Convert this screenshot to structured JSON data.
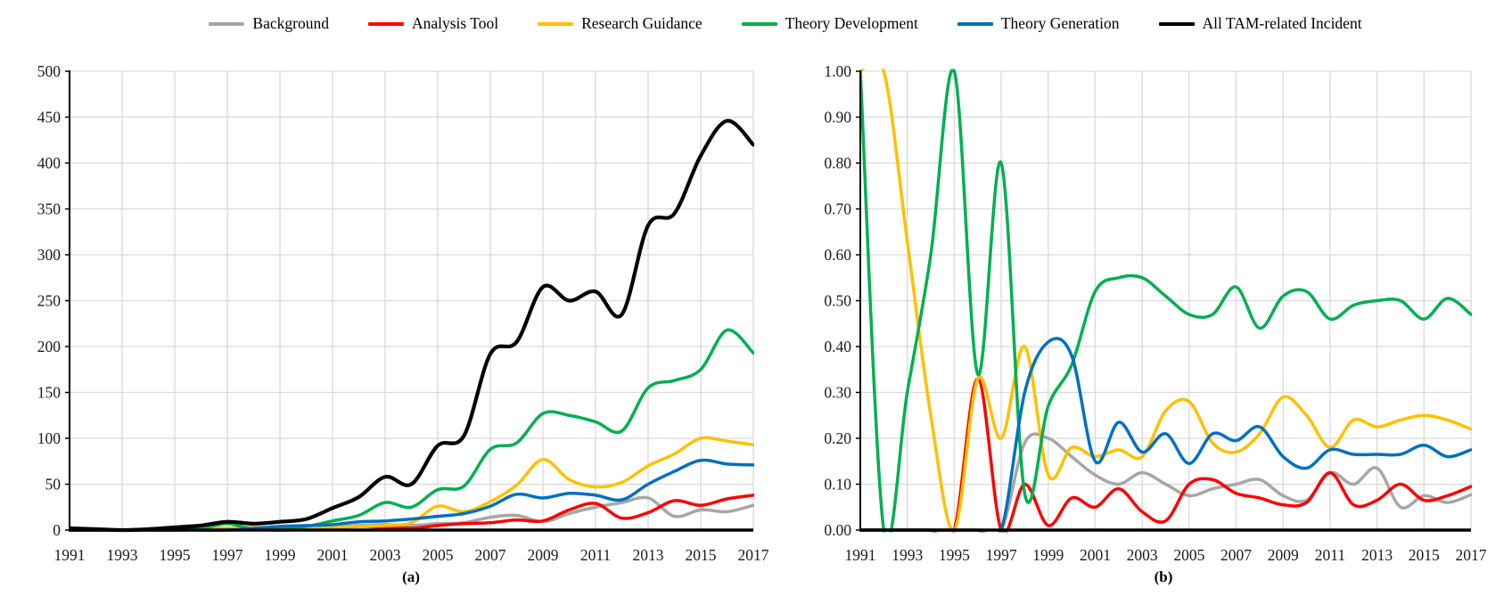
{
  "figure": {
    "background": "#FFFFFF",
    "grid_color": "#D9D9D9",
    "axis_color": "#000000",
    "tick_label_color": "#1A1A1A"
  },
  "legend": [
    {
      "label": "Background",
      "color": "#A6A6A6"
    },
    {
      "label": "Analysis Tool",
      "color": "#FF0000"
    },
    {
      "label": "Research Guidance",
      "color": "#FFC000"
    },
    {
      "label": "Theory Development",
      "color": "#00B050"
    },
    {
      "label": "Theory Generation",
      "color": "#0070C0"
    },
    {
      "label": "All TAM-related Incident",
      "color": "#000000"
    }
  ],
  "chart_data": [
    {
      "id": "a",
      "caption": "(a)",
      "type": "line",
      "title": "",
      "xlabel": "",
      "ylabel": "",
      "xlim": [
        1991,
        2017
      ],
      "ylim": [
        0,
        500
      ],
      "grid": true,
      "legend_position": "top-shared",
      "x": [
        1991,
        1992,
        1993,
        1994,
        1995,
        1996,
        1997,
        1998,
        1999,
        2000,
        2001,
        2002,
        2003,
        2004,
        2005,
        2006,
        2007,
        2008,
        2009,
        2010,
        2011,
        2012,
        2013,
        2014,
        2015,
        2016,
        2017
      ],
      "xticks": [
        "1991",
        "1993",
        "1995",
        "1997",
        "1999",
        "2001",
        "2003",
        "2005",
        "2007",
        "2009",
        "2011",
        "2013",
        "2015",
        "2017"
      ],
      "yticks": [
        "0",
        "50",
        "100",
        "150",
        "200",
        "250",
        "300",
        "350",
        "400",
        "450",
        "500"
      ],
      "series": [
        {
          "name": "Background",
          "color": "#A6A6A6",
          "values": [
            0,
            0,
            0,
            0,
            0,
            1,
            1,
            1,
            2,
            2,
            3,
            5,
            6,
            5,
            7,
            8,
            14,
            16,
            9,
            18,
            25,
            30,
            35,
            15,
            22,
            20,
            27
          ]
        },
        {
          "name": "Analysis Tool",
          "color": "#FF0000",
          "values": [
            0,
            0,
            0,
            0,
            0,
            1,
            2,
            1,
            0,
            1,
            2,
            4,
            3,
            2,
            5,
            7,
            8,
            11,
            10,
            22,
            29,
            13,
            19,
            32,
            27,
            34,
            38
          ]
        },
        {
          "name": "Research Guidance",
          "color": "#FFC000",
          "values": [
            2,
            1,
            0,
            0,
            0,
            2,
            2,
            3,
            1,
            2,
            3,
            4,
            5,
            8,
            26,
            20,
            31,
            49,
            77,
            55,
            47,
            52,
            70,
            83,
            100,
            97,
            93
          ]
        },
        {
          "name": "Theory Development",
          "color": "#00B050",
          "values": [
            2,
            0,
            0,
            1,
            3,
            2,
            7,
            1,
            2,
            4,
            10,
            16,
            30,
            25,
            44,
            48,
            88,
            95,
            127,
            125,
            118,
            108,
            155,
            163,
            175,
            218,
            193
          ]
        },
        {
          "name": "Theory Generation",
          "color": "#0070C0",
          "values": [
            0,
            0,
            0,
            0,
            0,
            0,
            0,
            2,
            4,
            5,
            6,
            9,
            10,
            12,
            15,
            18,
            26,
            39,
            35,
            40,
            38,
            33,
            50,
            64,
            76,
            72,
            71
          ]
        },
        {
          "name": "All TAM-related Incident",
          "color": "#000000",
          "values": [
            2,
            1,
            0,
            1,
            3,
            5,
            9,
            7,
            9,
            12,
            24,
            36,
            58,
            50,
            92,
            103,
            192,
            205,
            265,
            250,
            260,
            235,
            332,
            345,
            408,
            446,
            420
          ]
        }
      ]
    },
    {
      "id": "b",
      "caption": "(b)",
      "type": "line",
      "title": "",
      "xlabel": "",
      "ylabel": "",
      "xlim": [
        1991,
        2017
      ],
      "ylim": [
        0,
        1
      ],
      "grid": true,
      "legend_position": "top-shared",
      "x": [
        1991,
        1992,
        1993,
        1994,
        1995,
        1996,
        1997,
        1998,
        1999,
        2000,
        2001,
        2002,
        2003,
        2004,
        2005,
        2006,
        2007,
        2008,
        2009,
        2010,
        2011,
        2012,
        2013,
        2014,
        2015,
        2016,
        2017
      ],
      "xticks": [
        "1991",
        "1993",
        "1995",
        "1997",
        "1999",
        "2001",
        "2003",
        "2005",
        "2007",
        "2009",
        "2011",
        "2013",
        "2015",
        "2017"
      ],
      "yticks": [
        "0.00",
        "0.10",
        "0.20",
        "0.30",
        "0.40",
        "0.50",
        "0.60",
        "0.70",
        "0.80",
        "0.90",
        "1.00"
      ],
      "series": [
        {
          "name": "Background",
          "color": "#A6A6A6",
          "values": [
            0,
            0,
            0,
            0,
            0,
            0,
            0,
            0.19,
            0.2,
            0.16,
            0.12,
            0.1,
            0.125,
            0.1,
            0.075,
            0.09,
            0.1,
            0.11,
            0.075,
            0.065,
            0.125,
            0.1,
            0.135,
            0.05,
            0.075,
            0.06,
            0.077
          ]
        },
        {
          "name": "Analysis Tool",
          "color": "#FF0000",
          "values": [
            0,
            0,
            0,
            0,
            0,
            0.33,
            0,
            0.1,
            0.01,
            0.07,
            0.05,
            0.09,
            0.04,
            0.02,
            0.1,
            0.11,
            0.08,
            0.07,
            0.055,
            0.06,
            0.125,
            0.055,
            0.065,
            0.1,
            0.065,
            0.075,
            0.095
          ]
        },
        {
          "name": "Research Guidance",
          "color": "#FFC000",
          "values": [
            1,
            1,
            0.63,
            0.25,
            0,
            0.33,
            0.2,
            0.4,
            0.12,
            0.18,
            0.16,
            0.175,
            0.16,
            0.26,
            0.28,
            0.19,
            0.17,
            0.21,
            0.29,
            0.25,
            0.18,
            0.24,
            0.225,
            0.24,
            0.25,
            0.24,
            0.22
          ]
        },
        {
          "name": "Theory Development",
          "color": "#00B050",
          "values": [
            1,
            0,
            0.3,
            0.6,
            1,
            0.34,
            0.8,
            0.08,
            0.27,
            0.36,
            0.52,
            0.55,
            0.55,
            0.51,
            0.47,
            0.47,
            0.53,
            0.44,
            0.51,
            0.52,
            0.46,
            0.49,
            0.5,
            0.5,
            0.46,
            0.505,
            0.47
          ]
        },
        {
          "name": "Theory Generation",
          "color": "#0070C0",
          "values": [
            0,
            0,
            0,
            0,
            0,
            0,
            0,
            0.3,
            0.41,
            0.38,
            0.15,
            0.235,
            0.17,
            0.21,
            0.145,
            0.21,
            0.195,
            0.225,
            0.16,
            0.135,
            0.175,
            0.165,
            0.165,
            0.165,
            0.185,
            0.16,
            0.175
          ]
        }
      ]
    }
  ]
}
